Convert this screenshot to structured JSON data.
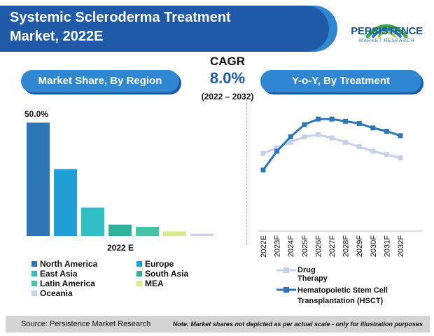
{
  "header": {
    "title_line1": "Systemic Scleroderma Treatment",
    "title_line2": "Market, 2022E"
  },
  "logo": {
    "name": "PERSISTENCE",
    "sub": "MARKET RESEARCH"
  },
  "cagr": {
    "label": "CAGR",
    "value": "8.0%",
    "period": "(2022 – 2032)"
  },
  "left_panel": {
    "title": "Market Share, By Region"
  },
  "right_panel": {
    "title": "Y-o-Y, By Treatment"
  },
  "colors": {
    "title_dark": "#1f5aa8",
    "title_accent": "#2f86d1",
    "north_america": "#2e75b6",
    "europe": "#1f9fd5",
    "east_asia": "#31bfc6",
    "south_asia": "#2fb39a",
    "latin_america": "#47c3a5",
    "mea": "#d7ec8a",
    "oceania": "#c9d2e8",
    "drug_therapy": "#c5d0ea",
    "hsct": "#2e75b6"
  },
  "chart_data": [
    {
      "type": "bar",
      "categories": [
        "North America",
        "Europe",
        "East Asia",
        "South Asia",
        "Latin America",
        "MEA",
        "Oceania"
      ],
      "values": [
        50.0,
        29.5,
        12.5,
        5.0,
        4.0,
        2.0,
        1.0
      ],
      "data_labels": [
        "50.0%",
        "",
        "",
        "",
        "",
        "",
        ""
      ],
      "xlabel": "2022 E",
      "ylim": [
        0,
        55
      ],
      "grid": false,
      "legend": [
        "North America",
        "Europe",
        "East Asia",
        "South Asia",
        "Latin America",
        "MEA",
        "Oceania"
      ],
      "legend_placement": "bottom"
    },
    {
      "type": "line",
      "x": [
        "2022E",
        "2023F",
        "2024F",
        "2025F",
        "2026F",
        "2027F",
        "2028F",
        "2029F",
        "2030F",
        "2031F",
        "2032F"
      ],
      "series": [
        {
          "name": "Drug Therapy",
          "values": [
            7.0,
            7.5,
            8.0,
            8.5,
            8.7,
            8.4,
            8.0,
            7.6,
            7.2,
            6.9,
            6.6
          ]
        },
        {
          "name": "Hematopoietic Stem Cell Transplantation (HSCT)",
          "values": [
            5.5,
            7.2,
            8.5,
            9.6,
            10.1,
            10.1,
            9.9,
            9.7,
            9.3,
            9.0,
            8.6
          ]
        }
      ],
      "ylim": [
        0,
        12
      ],
      "grid": false,
      "legend_placement": "bottom"
    }
  ],
  "footer": {
    "source": "Source: Persistence Market Research",
    "note": "Note: Market shares not depicted as per actual scale - only for illustration purposes"
  }
}
